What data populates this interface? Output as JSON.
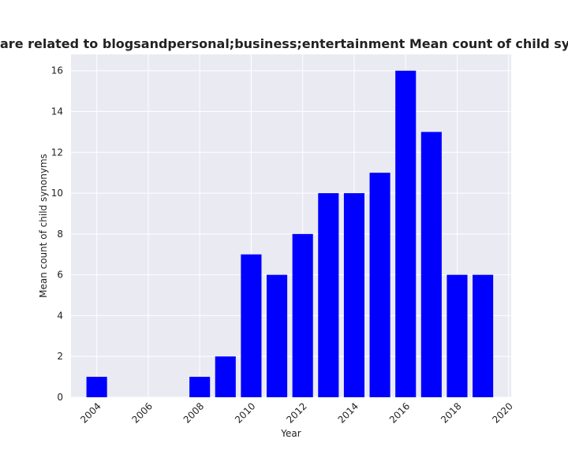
{
  "chart_data": {
    "type": "bar",
    "title": "are related to blogsandpersonal;business;entertainment Mean count of child synonyms in priva",
    "xlabel": "Year",
    "ylabel": "Mean count of child synonyms",
    "x": [
      2004,
      2008,
      2009,
      2010,
      2011,
      2012,
      2013,
      2014,
      2015,
      2016,
      2017,
      2018,
      2019
    ],
    "values": [
      1,
      1,
      2,
      7,
      6,
      8,
      10,
      10,
      11,
      16,
      13,
      6,
      6
    ],
    "xlim": [
      2003,
      2020.1
    ],
    "ylim": [
      0,
      16.8
    ],
    "xticks": [
      2004,
      2006,
      2008,
      2010,
      2012,
      2014,
      2016,
      2018,
      2020
    ],
    "yticks": [
      0,
      2,
      4,
      6,
      8,
      10,
      12,
      14,
      16
    ],
    "bar_color": "#0000ff",
    "background_color": "#eaeaf2",
    "grid": true,
    "legend": "none"
  }
}
